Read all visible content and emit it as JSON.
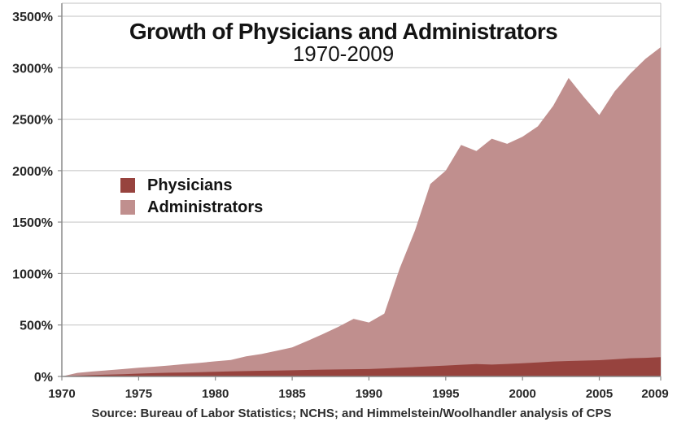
{
  "chart_data": {
    "type": "area",
    "stacked": false,
    "grid": true,
    "legend_position": "inside-left",
    "title": "Growth of Physicians and Administrators",
    "subtitle": "1970-2009",
    "source_note": "Source: Bureau of Labor Statistics; NCHS; and Himmelstein/Woolhandler analysis of CPS",
    "ylim": [
      0,
      3630
    ],
    "y_ticks": [
      {
        "value": 0,
        "label": "0%"
      },
      {
        "value": 500,
        "label": "500%"
      },
      {
        "value": 1000,
        "label": "1000%"
      },
      {
        "value": 1500,
        "label": "1500%"
      },
      {
        "value": 2000,
        "label": "2000%"
      },
      {
        "value": 2500,
        "label": "2500%"
      },
      {
        "value": 3000,
        "label": "3000%"
      },
      {
        "value": 3500,
        "label": "3500%"
      }
    ],
    "x_ticks": [
      {
        "value": 1970,
        "label": "1970"
      },
      {
        "value": 1975,
        "label": "1975"
      },
      {
        "value": 1980,
        "label": "1980"
      },
      {
        "value": 1985,
        "label": "1985"
      },
      {
        "value": 1990,
        "label": "1990"
      },
      {
        "value": 1995,
        "label": "1995"
      },
      {
        "value": 2000,
        "label": "2000"
      },
      {
        "value": 2005,
        "label": "2005"
      },
      {
        "value": 2009,
        "label": "2009"
      }
    ],
    "x_years": [
      1970,
      1971,
      1972,
      1973,
      1974,
      1975,
      1976,
      1977,
      1978,
      1979,
      1980,
      1981,
      1982,
      1983,
      1984,
      1985,
      1986,
      1987,
      1988,
      1989,
      1990,
      1991,
      1992,
      1993,
      1994,
      1995,
      1996,
      1997,
      1998,
      1999,
      2000,
      2001,
      2002,
      2003,
      2004,
      2005,
      2006,
      2007,
      2008,
      2009
    ],
    "series": [
      {
        "name": "Physicians",
        "color": "#97433e",
        "values": [
          0,
          8,
          14,
          18,
          22,
          28,
          32,
          36,
          39,
          42,
          46,
          49,
          52,
          55,
          58,
          60,
          63,
          66,
          68,
          70,
          72,
          78,
          85,
          92,
          99,
          106,
          114,
          120,
          115,
          122,
          128,
          137,
          145,
          150,
          154,
          158,
          167,
          177,
          181,
          187
        ]
      },
      {
        "name": "Administrators",
        "color": "#c08f8e",
        "values": [
          0,
          35,
          48,
          60,
          72,
          85,
          95,
          107,
          120,
          133,
          147,
          160,
          195,
          218,
          250,
          282,
          345,
          412,
          482,
          560,
          525,
          610,
          1050,
          1420,
          1870,
          2000,
          2250,
          2190,
          2310,
          2260,
          2330,
          2430,
          2630,
          2900,
          2715,
          2540,
          2770,
          2940,
          3085,
          3200
        ]
      }
    ],
    "colors": {
      "background": "#ffffff",
      "gridline": "#c2c2c2",
      "axis": "#8a8a8a",
      "text": "#262626"
    }
  }
}
